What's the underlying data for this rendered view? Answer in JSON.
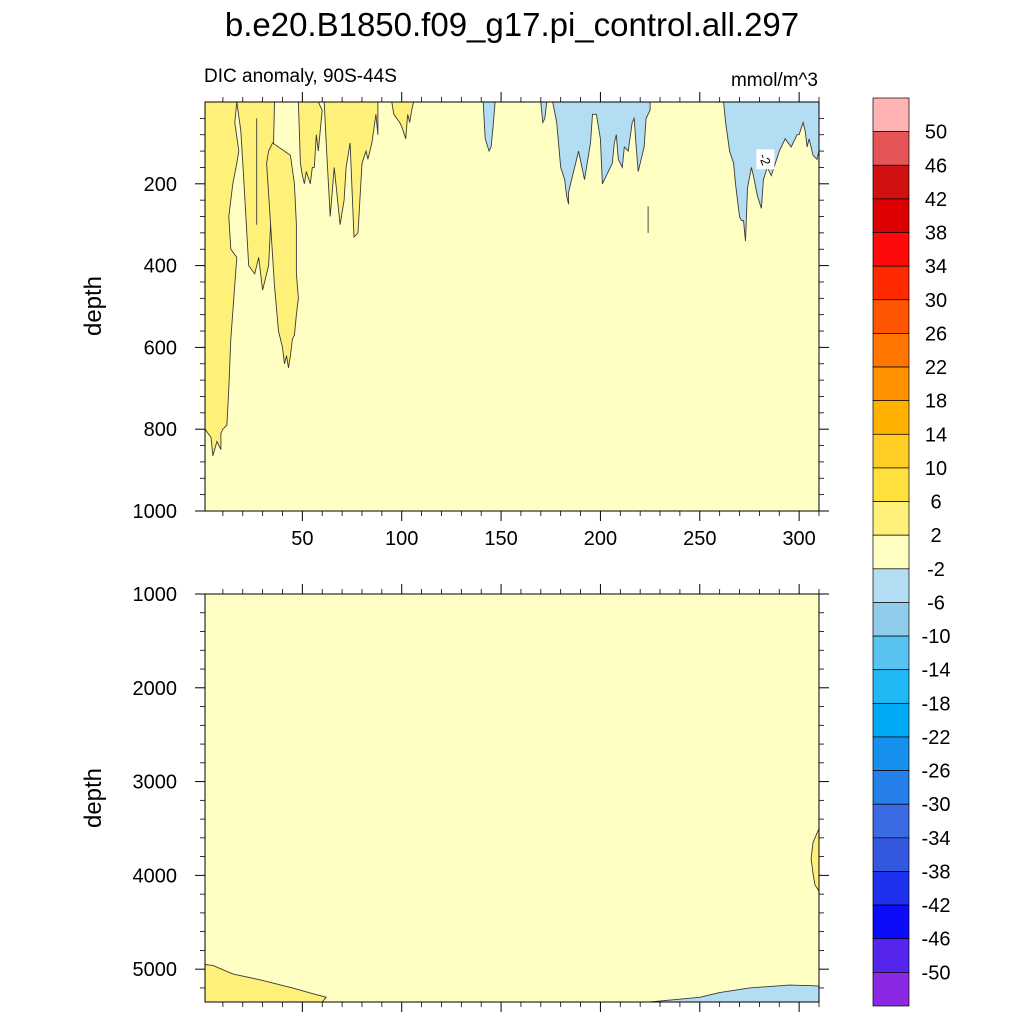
{
  "chart_data": {
    "type": "heatmap",
    "title": "b.e20.B1850.f09_g17.pi_control.all.297",
    "left_subtitle": "DIC anomaly, 90S-44S",
    "right_subtitle": "mmol/m^3",
    "colors": {
      "neutral": "#ffffc4",
      "pos2": "#fff07a",
      "neg2": "#b3ddf2",
      "frame": "#000000"
    },
    "panels": [
      {
        "name": "upper",
        "ylabel": "depth",
        "xlim": [
          1,
          310
        ],
        "ylim": [
          0,
          1000
        ],
        "y_reversed": true,
        "xticks": [
          50,
          100,
          150,
          200,
          250,
          300
        ],
        "xtick_labels": [
          "50",
          "100",
          "150",
          "200",
          "250",
          "300"
        ],
        "yticks": [
          200,
          400,
          600,
          800,
          1000
        ],
        "ytick_labels": [
          "200",
          "400",
          "600",
          "800",
          "1000"
        ],
        "contour_label": {
          "x": 283,
          "depth": 140,
          "text": "-2"
        },
        "regions": [
          {
            "level": "2 to 6",
            "x": [
              1,
              1,
              4,
              5,
              7,
              9,
              9,
              10,
              12,
              13,
              14,
              17,
              14,
              13,
              15,
              17,
              18,
              16,
              17
            ],
            "depth": [
              0,
              800,
              820,
              865,
              830,
              850,
              810,
              800,
              790,
              700,
              580,
              380,
              360,
              280,
              200,
              150,
              120,
              50,
              0
            ]
          },
          {
            "level": "2 to 6",
            "x": [
              17,
              19,
              20,
              21,
              23,
              26,
              28,
              30,
              33,
              35,
              36
            ],
            "depth": [
              0,
              70,
              150,
              230,
              400,
              420,
              380,
              460,
              400,
              200,
              0
            ]
          },
          {
            "level": "2 to 6",
            "x": [
              32,
              34,
              36,
              38,
              40,
              41,
              42,
              43,
              44,
              45,
              46,
              47,
              48,
              47,
              47,
              46,
              44,
              38,
              35,
              33,
              32
            ],
            "depth": [
              150,
              300,
              450,
              560,
              600,
              640,
              620,
              650,
              620,
              580,
              570,
              520,
              480,
              420,
              300,
              200,
              130,
              110,
              100,
              120,
              150
            ]
          },
          {
            "level": "2 to 6",
            "x": [
              48,
              49,
              50,
              51,
              52,
              54,
              55,
              56,
              57,
              58,
              60,
              58,
              56,
              55
            ],
            "depth": [
              0,
              150,
              180,
              200,
              170,
              200,
              160,
              160,
              80,
              120,
              20,
              0,
              0,
              0
            ]
          },
          {
            "level": "2 to 6",
            "x": [
              61,
              62,
              64,
              66,
              69,
              71,
              72,
              74,
              76,
              78,
              80,
              82,
              83,
              85,
              87,
              88,
              88,
              86
            ],
            "depth": [
              0,
              100,
              280,
              160,
              300,
              240,
              160,
              100,
              330,
              320,
              150,
              120,
              140,
              100,
              30,
              80,
              0,
              0
            ]
          },
          {
            "level": "2 to 6",
            "x": [
              95,
              96,
              99,
              100,
              102,
              103,
              104,
              105,
              106,
              103
            ],
            "depth": [
              0,
              30,
              50,
              60,
              90,
              30,
              50,
              20,
              0,
              0
            ]
          },
          {
            "level": "-6 to -2",
            "x": [
              176,
              178,
              180,
              182,
              183,
              184,
              184,
              187,
              189,
              192,
              195,
              196,
              198,
              200,
              201,
              202,
              206,
              207,
              208,
              209,
              211,
              212,
              214,
              216,
              217,
              218,
              219,
              220,
              222,
              223,
              225,
              225
            ],
            "depth": [
              0,
              50,
              160,
              190,
              230,
              250,
              220,
              160,
              120,
              190,
              100,
              30,
              30,
              90,
              200,
              190,
              150,
              100,
              80,
              140,
              160,
              110,
              120,
              50,
              40,
              110,
              170,
              150,
              110,
              40,
              20,
              0
            ]
          },
          {
            "level": "-6 to -2",
            "x": [
              262,
              263,
              265,
              267,
              268,
              270,
              271,
              272,
              273,
              274,
              276,
              277,
              279,
              281,
              282,
              284,
              286,
              288,
              290,
              293,
              296,
              299,
              300,
              302,
              303,
              304,
              305,
              307,
              309,
              310,
              310
            ],
            "depth": [
              0,
              50,
              120,
              150,
              200,
              280,
              290,
              290,
              340,
              210,
              160,
              180,
              230,
              260,
              190,
              160,
              180,
              150,
              120,
              90,
              110,
              80,
              80,
              50,
              70,
              110,
              90,
              130,
              140,
              120,
              0
            ]
          },
          {
            "level": "-6 to -2",
            "x": [
              141,
              142,
              144,
              145,
              146,
              147
            ],
            "depth": [
              0,
              90,
              120,
              110,
              60,
              0
            ]
          },
          {
            "level": "-6 to -2",
            "x": [
              170,
              171,
              172,
              173
            ],
            "depth": [
              0,
              50,
              40,
              0
            ]
          }
        ],
        "contour_lines": [
          {
            "x": [
              224,
              224
            ],
            "depth": [
              255,
              320
            ]
          },
          {
            "x": [
              27,
              27
            ],
            "depth": [
              40,
              300
            ]
          }
        ]
      },
      {
        "name": "lower",
        "ylabel": "depth",
        "xlim": [
          1,
          310
        ],
        "ylim": [
          1000,
          5350
        ],
        "y_reversed": true,
        "xticks": [
          50,
          100,
          150,
          200,
          250,
          300
        ],
        "xtick_labels": [],
        "yticks": [
          1000,
          2000,
          3000,
          4000,
          5000
        ],
        "ytick_labels": [
          "1000",
          "2000",
          "3000",
          "4000",
          "5000"
        ],
        "regions": [
          {
            "level": "2 to 6",
            "x": [
              1,
              1,
              5,
              15,
              30,
              45,
              55,
              62,
              60
            ],
            "depth": [
              5350,
              4950,
              4960,
              5050,
              5120,
              5200,
              5260,
              5300,
              5350
            ]
          },
          {
            "level": "-6 to -2",
            "x": [
              225,
              235,
              250,
              260,
              275,
              295,
              305,
              310,
              310
            ],
            "depth": [
              5350,
              5330,
              5300,
              5250,
              5200,
              5170,
              5175,
              5180,
              5350
            ]
          },
          {
            "level": "2 to 6",
            "x": [
              310,
              307,
              306,
              307,
              308,
              310
            ],
            "depth": [
              3500,
              3650,
              3820,
              3980,
              4100,
              4170
            ]
          }
        ]
      }
    ],
    "colorbar": {
      "orientation": "vertical",
      "labels": [
        "50",
        "46",
        "42",
        "38",
        "34",
        "30",
        "26",
        "22",
        "18",
        "14",
        "10",
        "6",
        "2",
        "-2",
        "-6",
        "-10",
        "-14",
        "-18",
        "-22",
        "-26",
        "-30",
        "-34",
        "-38",
        "-42",
        "-46",
        "-50"
      ],
      "colors": [
        "#ffb3b3",
        "#e55555",
        "#cf1111",
        "#dd0000",
        "#ff0a0a",
        "#ff2a00",
        "#ff5500",
        "#ff7700",
        "#ff9200",
        "#ffb100",
        "#ffcd23",
        "#ffe03d",
        "#fff07a",
        "#ffffc4",
        "#b3ddf2",
        "#91cceb",
        "#58c2f0",
        "#20b8f5",
        "#00aaf5",
        "#1591ed",
        "#2580ea",
        "#3b6ae2",
        "#3457e0",
        "#1c30ee",
        "#0c0cf8",
        "#5525ee",
        "#8a28e4"
      ]
    }
  }
}
